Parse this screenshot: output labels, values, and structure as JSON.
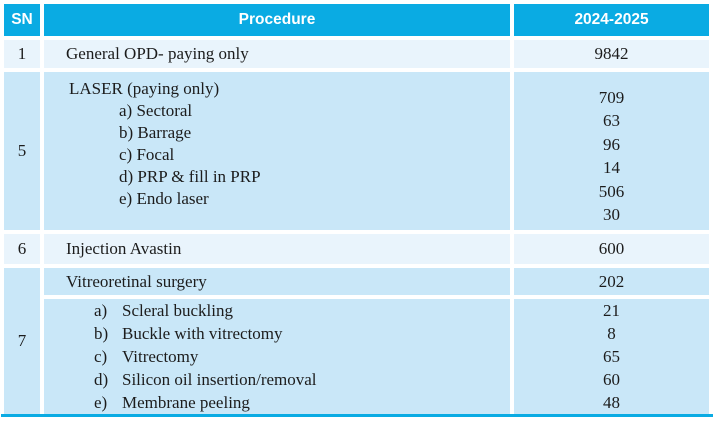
{
  "table": {
    "columns": [
      "SN",
      "Procedure",
      "2024-2025"
    ],
    "rows": [
      {
        "sn": "1",
        "procedure": "General OPD- paying only",
        "value": "9842"
      },
      {
        "sn": "5",
        "title": "LASER (paying only)",
        "items": [
          "a) Sectoral",
          "b) Barrage",
          "c) Focal",
          "d) PRP & fill in PRP",
          "e) Endo laser"
        ],
        "values": [
          "709",
          "63",
          "96",
          "14",
          "506",
          "30"
        ]
      },
      {
        "sn": "6",
        "procedure": "Injection Avastin",
        "value": "600"
      },
      {
        "sn": "7",
        "procedure": "Vitreoretinal surgery",
        "value": "202",
        "sub_items": [
          {
            "label": "a)",
            "text": "Scleral buckling"
          },
          {
            "label": "b)",
            "text": "Buckle with vitrectomy"
          },
          {
            "label": "c)",
            "text": "Vitrectomy"
          },
          {
            "label": "d)",
            "text": "Silicon oil insertion/removal"
          },
          {
            "label": "e)",
            "text": "Membrane peeling"
          }
        ],
        "sub_values": [
          "21",
          "8",
          "65",
          "60",
          "48"
        ]
      }
    ]
  },
  "colors": {
    "header_bg": "#0aabe3",
    "header_text": "#ffffff",
    "row_light": "#e9f4fc",
    "row_blue": "#c9e7f8",
    "bottom_line": "#0aabe3",
    "body_text": "#1c1c1c",
    "cell_gap": "#ffffff"
  }
}
